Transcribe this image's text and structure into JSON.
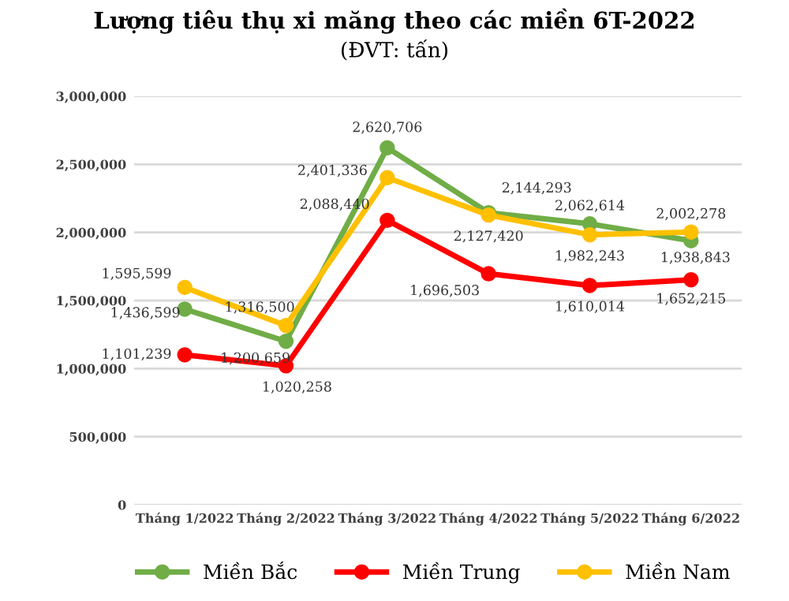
{
  "chart_data": {
    "type": "line",
    "title": "Lượng tiêu thụ xi măng theo các miền 6T-2022",
    "subtitle": "(ĐVT: tấn)",
    "categories": [
      "Tháng 1/2022",
      "Tháng 2/2022",
      "Tháng 3/2022",
      "Tháng 4/2022",
      "Tháng 5/2022",
      "Tháng 6/2022"
    ],
    "series": [
      {
        "name": "Miền Bắc",
        "color": "#70ad47",
        "values": [
          1436599,
          1200659,
          2620706,
          2144293,
          2062614,
          1938843
        ],
        "value_labels": [
          "1,436,599",
          "1,200,659",
          "2,620,706",
          "2,144,293",
          "2,062,614",
          "1,938,843"
        ]
      },
      {
        "name": "Miền Trung",
        "color": "#ff0000",
        "values": [
          1101239,
          1020258,
          2088440,
          1696503,
          1610014,
          1652215
        ],
        "value_labels": [
          "1,101,239",
          "1,020,258",
          "2,088,440",
          "1,696,503",
          "1,610,014",
          "1,652,215"
        ]
      },
      {
        "name": "Miền Nam",
        "color": "#ffc000",
        "values": [
          1595599,
          1316500,
          2401336,
          2127420,
          1982243,
          2002278
        ],
        "value_labels": [
          "1,595,599",
          "1,316,500",
          "2,401,336",
          "2,127,420",
          "1,982,243",
          "2,002,278"
        ]
      }
    ],
    "ylim": [
      0,
      3000000
    ],
    "yticks": [
      0,
      {
        "value": 500000,
        "label": "500,000"
      },
      {
        "value": 1000000,
        "label": "1,000,000"
      },
      {
        "value": 1500000,
        "label": "1,500,000"
      },
      {
        "value": 2000000,
        "label": "2,000,000"
      },
      {
        "value": 2500000,
        "label": "2,500,000"
      },
      {
        "value": 3000000,
        "label": "3,000,000"
      }
    ],
    "grid": "y",
    "legend": "bottom",
    "marker": "circle",
    "line_style": "solid"
  }
}
